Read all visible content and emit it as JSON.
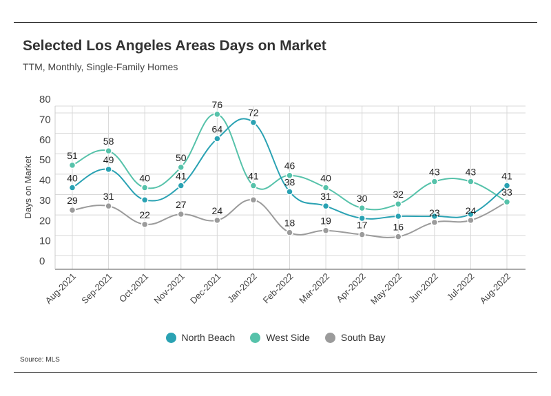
{
  "title": "Selected Los Angeles Areas Days on Market",
  "subtitle": "TTM, Monthly, Single-Family Homes",
  "source": "Source:  MLS",
  "chart_data": {
    "type": "line",
    "categories": [
      "Aug-2021",
      "Sep-2021",
      "Oct-2021",
      "Nov-2021",
      "Dec-2021",
      "Jan-2022",
      "Feb-2022",
      "Mar-2022",
      "Apr-2022",
      "May-2022",
      "Jun-2022",
      "Jul-2022",
      "Aug-2022"
    ],
    "ylabel": "Days on Market",
    "ylim": [
      0,
      80
    ],
    "yticks": [
      "0",
      "10",
      "20",
      "30",
      "40",
      "50",
      "60",
      "70",
      "80"
    ],
    "grid": true,
    "legend_position": "bottom",
    "series": [
      {
        "name": "North Beach",
        "color": "#2aa2b3",
        "values": [
          40,
          49,
          34,
          41,
          64,
          72,
          38,
          31,
          25,
          26,
          26,
          27,
          41
        ],
        "labels": [
          "40",
          "49",
          "",
          "41",
          "64",
          "",
          "38",
          "31",
          "",
          "",
          "",
          "",
          ""
        ]
      },
      {
        "name": "West Side",
        "color": "#56c2aa",
        "values": [
          51,
          58,
          40,
          50,
          76,
          41,
          46,
          40,
          30,
          32,
          43,
          43,
          33
        ],
        "labels": [
          "51",
          "58",
          "40",
          "50",
          "76",
          "41",
          "46",
          "40",
          "30",
          "32",
          "43",
          "43",
          ""
        ]
      },
      {
        "name": "South Bay",
        "color": "#9b9b9b",
        "values": [
          29,
          31,
          22,
          27,
          24,
          34,
          18,
          19,
          17,
          16,
          23,
          24,
          33
        ],
        "labels": [
          "29",
          "31",
          "22",
          "27",
          "24",
          "",
          "18",
          "19",
          "17",
          "16",
          "23",
          "24",
          ""
        ]
      }
    ],
    "extra_labels": [
      {
        "series": "North Beach",
        "index": 5,
        "text": "72"
      },
      {
        "series": "North Beach",
        "index": 12,
        "text": "41"
      },
      {
        "series": "South Bay",
        "index": 12,
        "text": "33"
      }
    ]
  }
}
